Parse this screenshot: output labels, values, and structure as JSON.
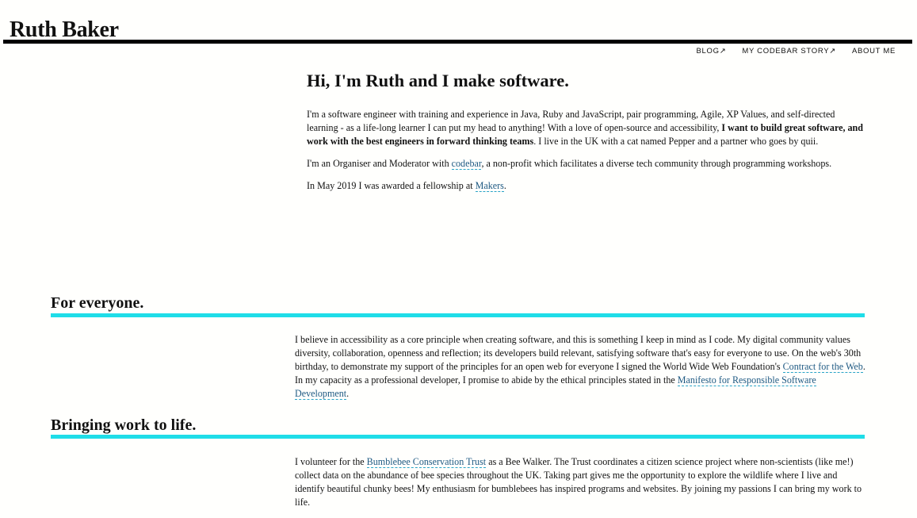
{
  "header": {
    "site_title": "Ruth Baker"
  },
  "nav": {
    "items": [
      "BLOG↗",
      "MY CODEBAR STORY↗",
      "ABOUT ME"
    ]
  },
  "hero": {
    "heading": "Hi, I'm Ruth and I make software.",
    "p1_a": "I'm a software engineer with training and experience in Java, Ruby and JavaScript, pair programming, Agile, XP Values, and self-directed learning - as a life-long learner I can put my head to anything! With a love of open-source and accessibility, ",
    "p1_bold": "I want to build great software, and work with the best engineers in forward thinking teams",
    "p1_b": ". I live in the UK with a cat named Pepper and a partner who goes by quii.",
    "p2_a": "I'm an Organiser and Moderator with ",
    "p2_link": "codebar",
    "p2_b": ", a non-profit which facilitates a diverse tech community through programming workshops.",
    "p3_a": "In May 2019 I was awarded a fellowship at ",
    "p3_link": "Makers",
    "p3_b": "."
  },
  "sections": [
    {
      "title": "For everyone.",
      "s1_a": "I believe in accessibility as a core principle when creating software, and this is something I keep in mind as I code. My digital community values diversity, collaboration, openness and reflection; its developers build relevant, satisfying software that's easy for everyone to use. On the web's 30th birthday, to demonstrate my support of the principles for an open web for everyone I signed the World Wide Web Foundation's ",
      "s1_link1": "Contract for the Web",
      "s1_b": ". In my capacity as a professional developer, I promise to abide by the ethical principles stated in the ",
      "s1_link2": "Manifesto for Responsible Software Development",
      "s1_c": "."
    },
    {
      "title": "Bringing work to life.",
      "s2_a": "I volunteer for the ",
      "s2_link": "Bumblebee Conservation Trust",
      "s2_b": " as a Bee Walker. The Trust coordinates a citizen science project where non-scientists (like me!) collect data on the abundance of bee species throughout the UK. Taking part gives me the opportunity to explore the wildlife where I live and identify beautiful chunky bees! My enthusiasm for bumblebees has inspired programs and websites. By joining my passions I can bring my work to life."
    }
  ],
  "colors": {
    "accent": "#1fdde8",
    "link": "#1f5a83",
    "text": "#111111",
    "background": "#fffffd"
  }
}
